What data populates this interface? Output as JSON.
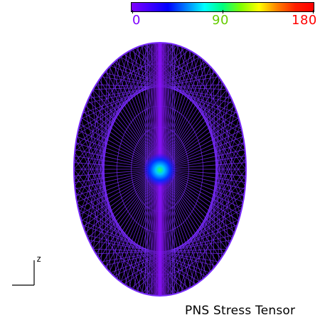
{
  "colorbar": {
    "colors": [
      "#7f00ff",
      "#4000ff",
      "#0000ff",
      "#0080ff",
      "#00ffff",
      "#00ff80",
      "#80ff00",
      "#ffff00",
      "#ff8000",
      "#ff2000",
      "#ff0000"
    ],
    "ticks": [
      {
        "label": "0",
        "color": "#7f00ff"
      },
      {
        "label": "90",
        "color": "#66cc00"
      },
      {
        "label": "180",
        "color": "#ff0000"
      }
    ]
  },
  "plot": {
    "mesh_color": "#7a2bff",
    "fill_color": "#000000",
    "band_color": "#8a10ff",
    "center_colors": [
      "#22ff66",
      "#00c8ff",
      "#0033ff",
      "#2a00ff"
    ]
  },
  "axes": {
    "label": "z"
  },
  "caption": "PNS Stress Tensor"
}
